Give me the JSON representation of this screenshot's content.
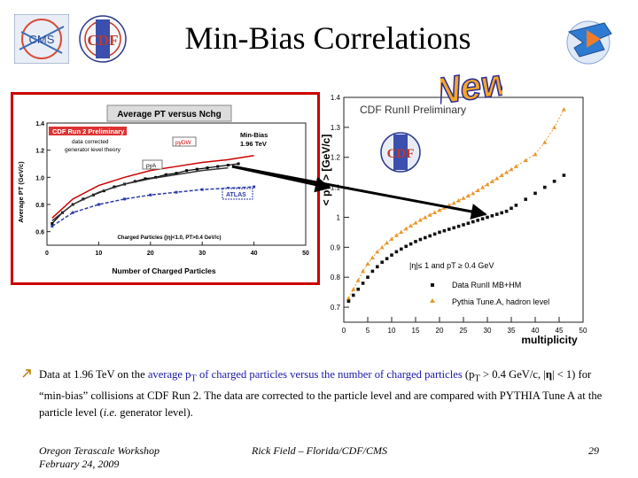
{
  "slide": {
    "title": "Min-Bias Correlations",
    "badge_new": "New",
    "logos": {
      "cms": "CMS",
      "cdf_left": "CDF",
      "cdf_center": "CDF"
    }
  },
  "bullet": {
    "part1": "Data at 1.96 TeV on the ",
    "highlight1": "average p",
    "highlight1_sub": "T",
    "highlight2": " of charged particles versus the number of charged particles",
    "part2": " (p",
    "part2_sub": "T",
    "part3": " > 0.4 GeV/c, |",
    "eta": "η",
    "part4": "| < 1) for “min-bias” collisions at CDF Run 2. The data are corrected to the particle level and are compared with PYTHIA Tune A at the particle level (",
    "ie": "i.e.",
    "part5": " generator level)."
  },
  "footer": {
    "workshop": "Oregon Terascale Workshop",
    "date": "February 24, 2009",
    "author": "Rick Field – Florida/CDF/CMS",
    "page": "29"
  },
  "chart_data": [
    {
      "type": "scatter",
      "title": "CDF RunII Preliminary",
      "ylabel": "< pT > [GeV/c]",
      "xlabel": "multiplicity",
      "xlim": [
        0,
        50
      ],
      "ylim": [
        0.65,
        1.4
      ],
      "xticks": [
        "0",
        "5",
        "10",
        "15",
        "20",
        "25",
        "30",
        "35",
        "40",
        "45",
        "50"
      ],
      "yticks": [
        "0.7",
        "0.8",
        "0.9",
        "1",
        "1.1",
        "1.2",
        "1.3",
        "1.4"
      ],
      "cut_label": "|η|≤ 1 and pT ≥ 0.4 GeV",
      "series": [
        {
          "name": "Data RunII MB+HM",
          "color": "#111111",
          "x": [
            1,
            2,
            3,
            4,
            5,
            6,
            7,
            8,
            9,
            10,
            11,
            12,
            13,
            14,
            15,
            16,
            17,
            18,
            19,
            20,
            21,
            22,
            23,
            24,
            25,
            26,
            27,
            28,
            29,
            30,
            31,
            32,
            33,
            34,
            35,
            36,
            38,
            40,
            42,
            44,
            46
          ],
          "y": [
            0.72,
            0.74,
            0.76,
            0.78,
            0.8,
            0.82,
            0.835,
            0.85,
            0.862,
            0.874,
            0.885,
            0.894,
            0.903,
            0.911,
            0.919,
            0.926,
            0.932,
            0.938,
            0.944,
            0.95,
            0.955,
            0.96,
            0.965,
            0.97,
            0.975,
            0.98,
            0.985,
            0.99,
            0.995,
            1.0,
            1.005,
            1.01,
            1.015,
            1.02,
            1.03,
            1.04,
            1.06,
            1.08,
            1.1,
            1.12,
            1.14
          ]
        },
        {
          "name": "Pythia Tune.A, hadron level",
          "color": "#e8962a",
          "x": [
            1,
            2,
            3,
            4,
            5,
            6,
            7,
            8,
            9,
            10,
            11,
            12,
            13,
            14,
            15,
            16,
            17,
            18,
            19,
            20,
            21,
            22,
            23,
            24,
            25,
            26,
            27,
            28,
            29,
            30,
            31,
            32,
            33,
            34,
            35,
            36,
            38,
            40,
            42,
            44,
            46
          ],
          "y": [
            0.73,
            0.76,
            0.79,
            0.82,
            0.845,
            0.865,
            0.885,
            0.9,
            0.915,
            0.928,
            0.94,
            0.951,
            0.962,
            0.972,
            0.982,
            0.991,
            1.0,
            1.008,
            1.016,
            1.024,
            1.032,
            1.04,
            1.048,
            1.056,
            1.064,
            1.072,
            1.08,
            1.09,
            1.1,
            1.11,
            1.12,
            1.13,
            1.14,
            1.15,
            1.16,
            1.17,
            1.19,
            1.21,
            1.25,
            1.3,
            1.36
          ]
        }
      ]
    },
    {
      "type": "line",
      "title": "Average PT versus Nchg",
      "xlabel": "Number of Charged Particles",
      "ylabel": "Average PT (GeV/c)",
      "xlim": [
        0,
        50
      ],
      "ylim": [
        0.5,
        1.4
      ],
      "xticks": [
        "0",
        "10",
        "20",
        "30",
        "40",
        "50"
      ],
      "yticks": [
        "0.6",
        "0.8",
        "1.0",
        "1.2",
        "1.4"
      ],
      "axis_caption": "Charged Particles (|η|<1.0, PT>0.4 GeV/c)",
      "annotations": {
        "preliminary": "CDF Run 2 Preliminary",
        "note1": "data corrected",
        "note2": "generator level theory",
        "minbias1": "Min-Bias",
        "minbias2": "1.96 TeV",
        "pydw": "pyDW",
        "pya": "pyA",
        "atlas": "ATLAS"
      },
      "series": [
        {
          "name": "data",
          "color": "#000000",
          "x": [
            1,
            3,
            5,
            7,
            9,
            11,
            13,
            15,
            17,
            19,
            21,
            23,
            25,
            27,
            29,
            31,
            33,
            35,
            37
          ],
          "y": [
            0.66,
            0.74,
            0.8,
            0.84,
            0.87,
            0.9,
            0.93,
            0.95,
            0.97,
            0.99,
            1.0,
            1.02,
            1.03,
            1.05,
            1.06,
            1.07,
            1.08,
            1.09,
            1.1
          ]
        },
        {
          "name": "pyDW",
          "color": "#cc0000",
          "x": [
            1,
            5,
            10,
            15,
            20,
            25,
            30,
            35,
            40
          ],
          "y": [
            0.7,
            0.84,
            0.94,
            1.0,
            1.05,
            1.08,
            1.11,
            1.13,
            1.16
          ]
        },
        {
          "name": "pyA",
          "color": "#333333",
          "x": [
            1,
            5,
            10,
            15,
            20,
            25,
            30,
            35
          ],
          "y": [
            0.68,
            0.8,
            0.89,
            0.95,
            0.99,
            1.02,
            1.05,
            1.07
          ]
        },
        {
          "name": "ATLAS",
          "color": "#2a3aa8",
          "x": [
            1,
            5,
            10,
            15,
            20,
            25,
            30,
            35,
            40
          ],
          "y": [
            0.64,
            0.74,
            0.8,
            0.84,
            0.87,
            0.89,
            0.91,
            0.92,
            0.93
          ]
        }
      ]
    }
  ]
}
